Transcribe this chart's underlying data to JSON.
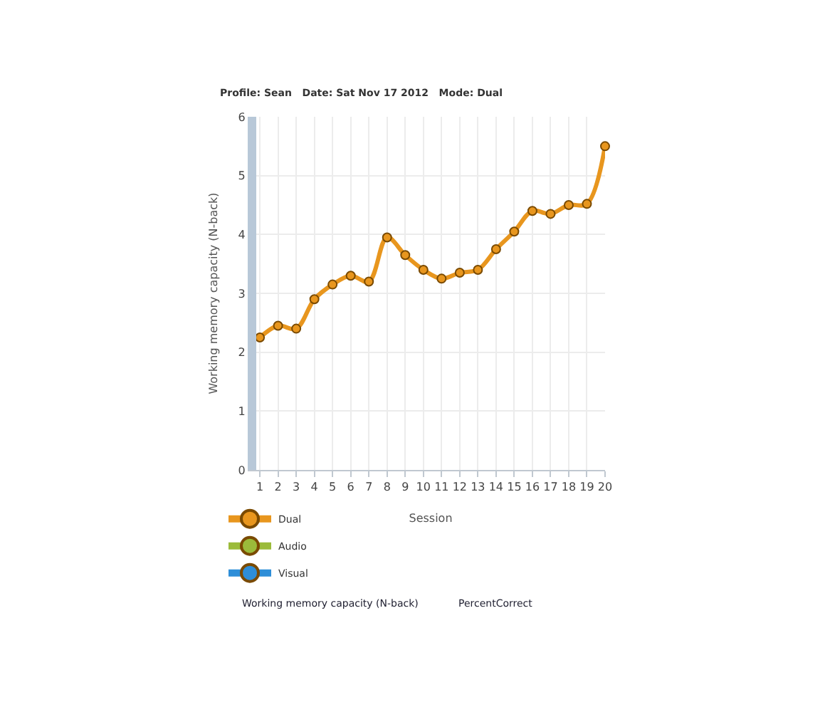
{
  "chart_data": {
    "type": "line",
    "title": "Profile: Sean   Date: Sat Nov 17 2012   Mode: Dual",
    "xlabel": "Session",
    "ylabel": "Working memory capacity (N-back)",
    "x": [
      1,
      2,
      3,
      4,
      5,
      6,
      7,
      8,
      9,
      10,
      11,
      12,
      13,
      14,
      15,
      16,
      17,
      18,
      19,
      20
    ],
    "series": [
      {
        "name": "Dual",
        "color": "#e8961e",
        "values": [
          2.25,
          2.45,
          2.4,
          2.9,
          3.15,
          3.3,
          3.2,
          3.95,
          3.65,
          3.4,
          3.25,
          3.35,
          3.4,
          3.75,
          4.05,
          4.4,
          4.35,
          4.5,
          4.52,
          5.5
        ]
      },
      {
        "name": "Audio",
        "color": "#9bbb3a",
        "values": [
          null,
          null,
          null,
          null,
          null,
          null,
          null,
          null,
          null,
          null,
          null,
          null,
          null,
          null,
          null,
          null,
          null,
          null,
          null,
          null
        ]
      },
      {
        "name": "Visual",
        "color": "#2e8ed8",
        "values": [
          null,
          null,
          null,
          null,
          null,
          null,
          null,
          null,
          null,
          null,
          null,
          null,
          null,
          null,
          null,
          null,
          null,
          null,
          null,
          null
        ]
      }
    ],
    "xlim": [
      0.8,
      20
    ],
    "xticks": [
      1,
      2,
      3,
      4,
      5,
      6,
      7,
      8,
      9,
      10,
      11,
      12,
      13,
      14,
      15,
      16,
      17,
      18,
      19,
      20
    ],
    "ylim": [
      0,
      6
    ],
    "yticks": [
      0,
      1,
      2,
      3,
      4,
      5,
      6
    ],
    "grid": true,
    "legend": "bottom left",
    "marker": "circle",
    "line_style": "solid",
    "annotations": [
      "Working memory capacity (N-back)",
      "PercentCorrect"
    ]
  }
}
